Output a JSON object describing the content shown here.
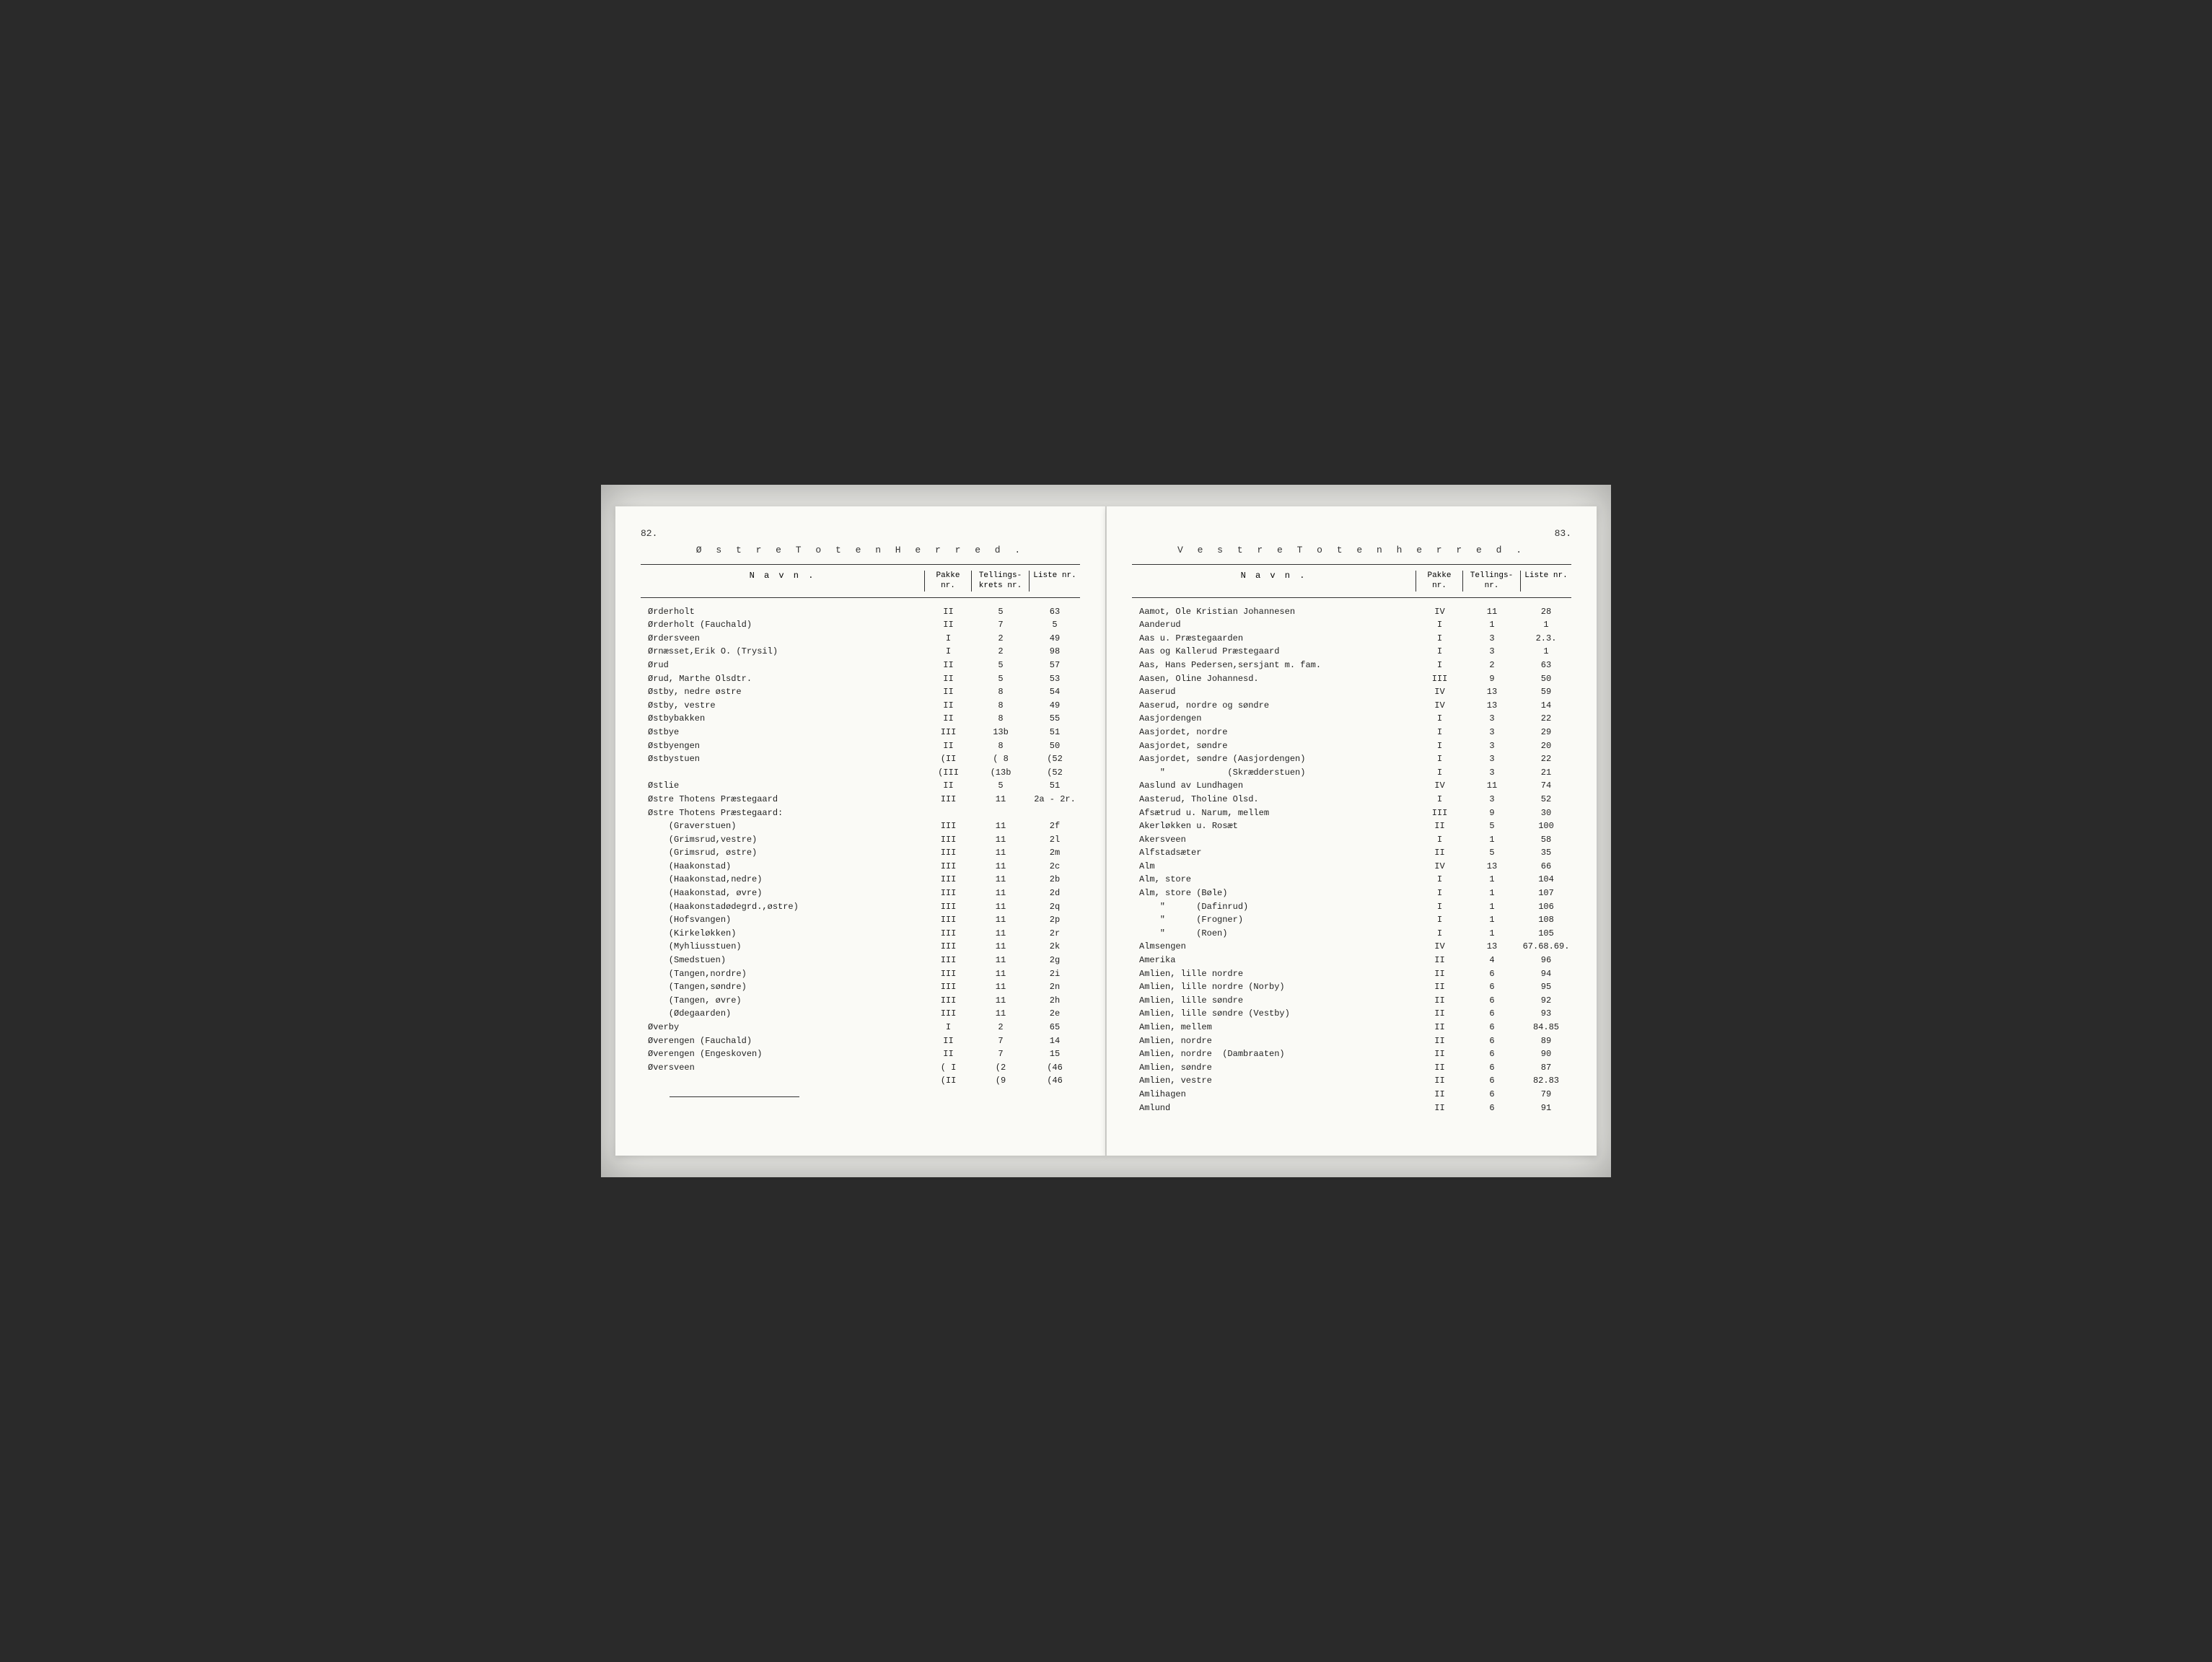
{
  "microfilm": {
    "background_color": "#2a2a2a",
    "frame_color": "#e8e8e4",
    "page_color": "#fafaf6"
  },
  "left_page": {
    "page_number": "82.",
    "title": "Ø s t r e   T o t e n   H e r r e d  .",
    "headers": {
      "navn": "N a v n .",
      "pakke": "Pakke nr.",
      "tellings": "Tellings-krets nr.",
      "liste": "Liste nr."
    },
    "rows": [
      {
        "navn": "Ørderholt",
        "pakke": "II",
        "tellings": "5",
        "liste": "63"
      },
      {
        "navn": "Ørderholt (Fauchald)",
        "pakke": "II",
        "tellings": "7",
        "liste": "5"
      },
      {
        "navn": "Ørdersveen",
        "pakke": "I",
        "tellings": "2",
        "liste": "49"
      },
      {
        "navn": "Ørnæsset,Erik O. (Trysil)",
        "pakke": "I",
        "tellings": "2",
        "liste": "98"
      },
      {
        "navn": "Ørud",
        "pakke": "II",
        "tellings": "5",
        "liste": "57"
      },
      {
        "navn": "Ørud, Marthe Olsdtr.",
        "pakke": "II",
        "tellings": "5",
        "liste": "53"
      },
      {
        "navn": "Østby, nedre østre",
        "pakke": "II",
        "tellings": "8",
        "liste": "54"
      },
      {
        "navn": "Østby, vestre",
        "pakke": "II",
        "tellings": "8",
        "liste": "49"
      },
      {
        "navn": "Østbybakken",
        "pakke": "II",
        "tellings": "8",
        "liste": "55"
      },
      {
        "navn": "Østbye",
        "pakke": "III",
        "tellings": "13b",
        "liste": "51"
      },
      {
        "navn": "Østbyengen",
        "pakke": "II",
        "tellings": "8",
        "liste": "50"
      },
      {
        "navn": "Østbystuen",
        "pakke": "(II",
        "tellings": "( 8",
        "liste": "(52"
      },
      {
        "navn": "",
        "pakke": "(III",
        "tellings": "(13b",
        "liste": "(52"
      },
      {
        "navn": "Østlie",
        "pakke": "II",
        "tellings": "5",
        "liste": "51"
      },
      {
        "navn": "Østre Thotens Præstegaard",
        "pakke": "III",
        "tellings": "11",
        "liste": "2a - 2r."
      },
      {
        "navn": "Østre Thotens Præstegaard:",
        "pakke": "",
        "tellings": "",
        "liste": ""
      },
      {
        "navn": "    (Graverstuen)",
        "pakke": "III",
        "tellings": "11",
        "liste": "2f"
      },
      {
        "navn": "    (Grimsrud,vestre)",
        "pakke": "III",
        "tellings": "11",
        "liste": "2l"
      },
      {
        "navn": "    (Grimsrud, østre)",
        "pakke": "III",
        "tellings": "11",
        "liste": "2m"
      },
      {
        "navn": "    (Haakonstad)",
        "pakke": "III",
        "tellings": "11",
        "liste": "2c"
      },
      {
        "navn": "    (Haakonstad,nedre)",
        "pakke": "III",
        "tellings": "11",
        "liste": "2b"
      },
      {
        "navn": "    (Haakonstad, øvre)",
        "pakke": "III",
        "tellings": "11",
        "liste": "2d"
      },
      {
        "navn": "    (Haakonstadødegrd.,østre)",
        "pakke": "III",
        "tellings": "11",
        "liste": "2q"
      },
      {
        "navn": "    (Hofsvangen)",
        "pakke": "III",
        "tellings": "11",
        "liste": "2p"
      },
      {
        "navn": "    (Kirkeløkken)",
        "pakke": "III",
        "tellings": "11",
        "liste": "2r"
      },
      {
        "navn": "    (Myhliusstuen)",
        "pakke": "III",
        "tellings": "11",
        "liste": "2k"
      },
      {
        "navn": "    (Smedstuen)",
        "pakke": "III",
        "tellings": "11",
        "liste": "2g"
      },
      {
        "navn": "    (Tangen,nordre)",
        "pakke": "III",
        "tellings": "11",
        "liste": "2i"
      },
      {
        "navn": "    (Tangen,søndre)",
        "pakke": "III",
        "tellings": "11",
        "liste": "2n"
      },
      {
        "navn": "    (Tangen, øvre)",
        "pakke": "III",
        "tellings": "11",
        "liste": "2h"
      },
      {
        "navn": "    (Ødegaarden)",
        "pakke": "III",
        "tellings": "11",
        "liste": "2e"
      },
      {
        "navn": "Øverby",
        "pakke": "I",
        "tellings": "2",
        "liste": "65"
      },
      {
        "navn": "Øverengen (Fauchald)",
        "pakke": "II",
        "tellings": "7",
        "liste": "14"
      },
      {
        "navn": "Øverengen (Engeskoven)",
        "pakke": "II",
        "tellings": "7",
        "liste": "15"
      },
      {
        "navn": "Øversveen",
        "pakke": "( I",
        "tellings": "(2",
        "liste": "(46"
      },
      {
        "navn": "",
        "pakke": "(II",
        "tellings": "(9",
        "liste": "(46"
      }
    ]
  },
  "right_page": {
    "page_number": "83.",
    "title": "V e s t r e   T o t e n   h e r r e d .",
    "headers": {
      "navn": "N a v n .",
      "pakke": "Pakke nr.",
      "tellings": "Tellings-nr.",
      "liste": "Liste nr."
    },
    "rows": [
      {
        "navn": "Aamot, Ole Kristian Johannesen",
        "pakke": "IV",
        "tellings": "11",
        "liste": "28"
      },
      {
        "navn": "Aanderud",
        "pakke": "I",
        "tellings": "1",
        "liste": "1"
      },
      {
        "navn": "Aas u. Præstegaarden",
        "pakke": "I",
        "tellings": "3",
        "liste": "2.3."
      },
      {
        "navn": "Aas og Kallerud Præstegaard",
        "pakke": "I",
        "tellings": "3",
        "liste": "1"
      },
      {
        "navn": "Aas, Hans Pedersen,sersjant m. fam.",
        "pakke": "I",
        "tellings": "2",
        "liste": "63"
      },
      {
        "navn": "Aasen, Oline Johannesd.",
        "pakke": "III",
        "tellings": "9",
        "liste": "50"
      },
      {
        "navn": "Aaserud",
        "pakke": "IV",
        "tellings": "13",
        "liste": "59"
      },
      {
        "navn": "Aaserud, nordre og søndre",
        "pakke": "IV",
        "tellings": "13",
        "liste": "14"
      },
      {
        "navn": "Aasjordengen",
        "pakke": "I",
        "tellings": "3",
        "liste": "22"
      },
      {
        "navn": "Aasjordet, nordre",
        "pakke": "I",
        "tellings": "3",
        "liste": "29"
      },
      {
        "navn": "Aasjordet, søndre",
        "pakke": "I",
        "tellings": "3",
        "liste": "20"
      },
      {
        "navn": "Aasjordet, søndre (Aasjordengen)",
        "pakke": "I",
        "tellings": "3",
        "liste": "22"
      },
      {
        "navn": "    \"            (Skrædderstuen)",
        "pakke": "I",
        "tellings": "3",
        "liste": "21"
      },
      {
        "navn": "Aaslund av Lundhagen",
        "pakke": "IV",
        "tellings": "11",
        "liste": "74"
      },
      {
        "navn": "Aasterud, Tholine Olsd.",
        "pakke": "I",
        "tellings": "3",
        "liste": "52"
      },
      {
        "navn": "Afsætrud u. Narum, mellem",
        "pakke": "III",
        "tellings": "9",
        "liste": "30"
      },
      {
        "navn": "Akerløkken u. Rosæt",
        "pakke": "II",
        "tellings": "5",
        "liste": "100"
      },
      {
        "navn": "Akersveen",
        "pakke": "I",
        "tellings": "1",
        "liste": "58"
      },
      {
        "navn": "Alfstadsæter",
        "pakke": "II",
        "tellings": "5",
        "liste": "35"
      },
      {
        "navn": "Alm",
        "pakke": "IV",
        "tellings": "13",
        "liste": "66"
      },
      {
        "navn": "Alm, store",
        "pakke": "I",
        "tellings": "1",
        "liste": "104"
      },
      {
        "navn": "Alm, store (Bøle)",
        "pakke": "I",
        "tellings": "1",
        "liste": "107"
      },
      {
        "navn": "    \"      (Dafinrud)",
        "pakke": "I",
        "tellings": "1",
        "liste": "106"
      },
      {
        "navn": "    \"      (Frogner)",
        "pakke": "I",
        "tellings": "1",
        "liste": "108"
      },
      {
        "navn": "    \"      (Roen)",
        "pakke": "I",
        "tellings": "1",
        "liste": "105"
      },
      {
        "navn": "Almsengen",
        "pakke": "IV",
        "tellings": "13",
        "liste": "67.68.69."
      },
      {
        "navn": "Amerika",
        "pakke": "II",
        "tellings": "4",
        "liste": "96"
      },
      {
        "navn": "Amlien, lille nordre",
        "pakke": "II",
        "tellings": "6",
        "liste": "94"
      },
      {
        "navn": "Amlien, lille nordre (Norby)",
        "pakke": "II",
        "tellings": "6",
        "liste": "95"
      },
      {
        "navn": "Amlien, lille søndre",
        "pakke": "II",
        "tellings": "6",
        "liste": "92"
      },
      {
        "navn": "Amlien, lille søndre (Vestby)",
        "pakke": "II",
        "tellings": "6",
        "liste": "93"
      },
      {
        "navn": "Amlien, mellem",
        "pakke": "II",
        "tellings": "6",
        "liste": "84.85"
      },
      {
        "navn": "Amlien, nordre",
        "pakke": "II",
        "tellings": "6",
        "liste": "89"
      },
      {
        "navn": "Amlien, nordre  (Dambraaten)",
        "pakke": "II",
        "tellings": "6",
        "liste": "90"
      },
      {
        "navn": "Amlien, søndre",
        "pakke": "II",
        "tellings": "6",
        "liste": "87"
      },
      {
        "navn": "Amlien, vestre",
        "pakke": "II",
        "tellings": "6",
        "liste": "82.83"
      },
      {
        "navn": "Amlihagen",
        "pakke": "II",
        "tellings": "6",
        "liste": "79"
      },
      {
        "navn": "Amlund",
        "pakke": "II",
        "tellings": "6",
        "liste": "91"
      }
    ]
  }
}
